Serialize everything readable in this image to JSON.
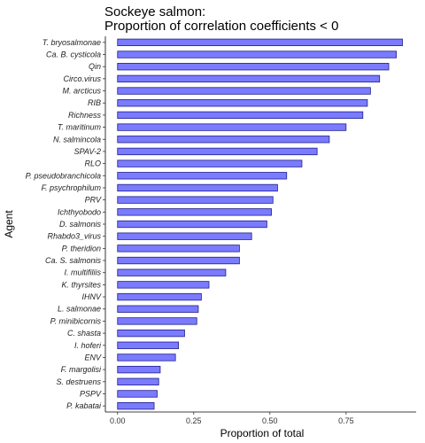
{
  "chart_data": {
    "type": "bar",
    "orientation": "horizontal",
    "title_lines": [
      "Sockeye salmon:",
      "Proportion of correlation coefficients < 0"
    ],
    "xlabel": "Proportion of total",
    "ylabel": "Agent",
    "xlim": [
      -0.04,
      0.98
    ],
    "x_ticks": [
      0,
      0.25,
      0.5,
      0.75
    ],
    "x_tick_labels": [
      "0.00",
      "0.25",
      "0.50",
      "0.75"
    ],
    "bar_fill": "#7b7bff",
    "bar_stroke": "#1e1e8a",
    "grid": false,
    "categories": [
      "T. bryosalmonae",
      "Ca. B. cysticola",
      "Qin",
      "Circo.virus",
      "M. arcticus",
      "RIB",
      "Richness",
      "T. maritinum",
      "N. salmincola",
      "SPAV-2",
      "RLO",
      "P. pseudobranchicola",
      "F. psychrophilum",
      "PRV",
      "Ichthyobodo",
      "D. salmonis",
      "Rhabdo3_virus",
      "P. theridion",
      "Ca. S. salmonis",
      "I. multifiliis",
      "K. thyrsites",
      "IHNV",
      "L. salmonae",
      "P. minibicornis",
      "C. shasta",
      "I. hoferi",
      "ENV",
      "F. margolisi",
      "S. destruens",
      "PSPV",
      "P. kabatai"
    ],
    "values": [
      0.935,
      0.915,
      0.89,
      0.86,
      0.83,
      0.82,
      0.805,
      0.75,
      0.695,
      0.655,
      0.605,
      0.555,
      0.525,
      0.51,
      0.505,
      0.49,
      0.44,
      0.4,
      0.4,
      0.355,
      0.3,
      0.275,
      0.265,
      0.26,
      0.22,
      0.2,
      0.19,
      0.14,
      0.135,
      0.13,
      0.12
    ]
  }
}
